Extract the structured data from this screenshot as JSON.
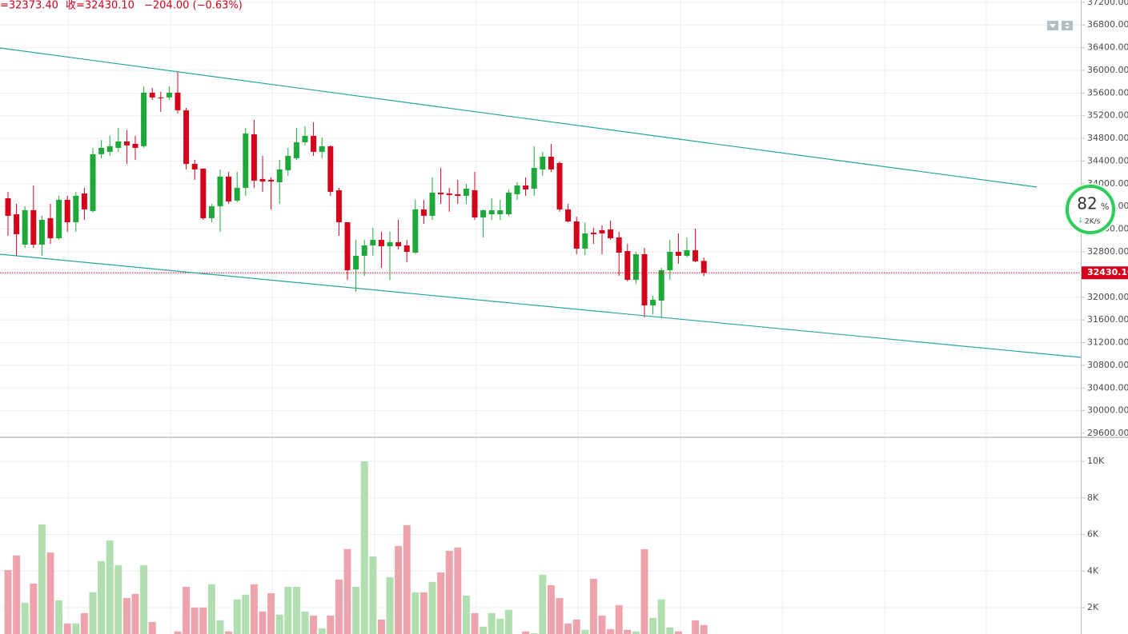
{
  "chart_data": {
    "type": "candlestick",
    "header": [
      "=32373.40",
      "收=32430.10",
      "−204.00 (−0.63%)"
    ],
    "open": [
      33745,
      33463,
      32927,
      33534,
      32927,
      33393,
      33040,
      33717,
      33322,
      33830,
      33520,
      34521,
      34563,
      34633,
      34746,
      34704,
      34662,
      35606,
      35522,
      35522,
      35606,
      35296,
      34351,
      34267,
      33393,
      33604,
      34126,
      33703,
      33928,
      34873,
      34084,
      34070,
      34027,
      34239,
      34450,
      34732,
      34845,
      34563,
      34662,
      33886,
      33322,
      32490,
      32730,
      32913,
      33012,
      32899,
      32970,
      32913,
      32786,
      33548,
      33435,
      33844,
      33830,
      33815,
      33787,
      33886,
      33407,
      33463,
      33463,
      33463,
      33816,
      33971,
      33914,
      34253,
      34478,
      34366,
      33548,
      33336,
      32857,
      33139,
      33181,
      33195,
      33054,
      32814,
      32307,
      32758,
      31856,
      31940,
      32476,
      32800,
      32730,
      32829,
      32640
    ],
    "high": [
      33858,
      33646,
      33604,
      33971,
      33435,
      33646,
      33787,
      33787,
      33858,
      33928,
      34633,
      34774,
      34845,
      34986,
      34944,
      34845,
      35719,
      35691,
      35620,
      35719,
      35973,
      35338,
      34422,
      34267,
      33646,
      34253,
      34210,
      34210,
      34986,
      35127,
      34492,
      34112,
      34422,
      34633,
      34986,
      35014,
      35085,
      34817,
      34676,
      33928,
      33322,
      33012,
      33012,
      33223,
      33153,
      33153,
      33364,
      33012,
      33717,
      33717,
      34112,
      34281,
      33928,
      34069,
      33999,
      34210,
      33548,
      33745,
      33717,
      33900,
      34027,
      34112,
      34662,
      34563,
      34704,
      34394,
      33646,
      33420,
      33322,
      33223,
      33266,
      33350,
      33153,
      32941,
      32800,
      32871,
      32025,
      32518,
      33012,
      33125,
      33054,
      33209,
      32700
    ],
    "low": [
      33082,
      32730,
      32871,
      32871,
      32730,
      32941,
      33012,
      33153,
      33153,
      33364,
      33491,
      34450,
      34492,
      34563,
      34351,
      34422,
      34633,
      35479,
      35268,
      35479,
      35240,
      34253,
      34069,
      33364,
      33322,
      33153,
      33646,
      33675,
      33787,
      33928,
      33858,
      33548,
      33646,
      34140,
      34422,
      34676,
      34492,
      34450,
      33787,
      33082,
      32307,
      32095,
      32377,
      32730,
      32518,
      32307,
      32843,
      32617,
      32758,
      33294,
      33364,
      33646,
      33506,
      33646,
      33646,
      33364,
      33054,
      33364,
      33364,
      33435,
      33717,
      33787,
      33787,
      34140,
      34210,
      33506,
      33322,
      32758,
      32744,
      32941,
      32758,
      33012,
      32377,
      32279,
      32237,
      31644,
      31701,
      31630,
      32307,
      32589,
      32702,
      32617,
      32373.4
    ],
    "close": [
      33435,
      33111,
      33534,
      32927,
      33364,
      33040,
      33717,
      33322,
      33787,
      33548,
      34521,
      34633,
      34662,
      34746,
      34676,
      34633,
      35606,
      35522,
      35515,
      35606,
      35296,
      34351,
      34253,
      33393,
      33604,
      34126,
      33689,
      33928,
      34887,
      34055,
      34041,
      34040,
      34253,
      34492,
      34732,
      34845,
      34563,
      34662,
      33858,
      33322,
      32476,
      32730,
      32913,
      33012,
      32899,
      32970,
      32899,
      32800,
      33548,
      33435,
      33844,
      33815,
      33801,
      33787,
      33914,
      33407,
      33534,
      33534,
      33534,
      33844,
      33971,
      33900,
      34281,
      34478,
      34253,
      33548,
      33336,
      32857,
      33124,
      33111,
      33125,
      33040,
      32786,
      32307,
      32758,
      31856,
      31954,
      32476,
      32800,
      32730,
      32829,
      32634.1,
      32430.1
    ],
    "volume": [
      4060,
      4850,
      2270,
      3320,
      6550,
      5020,
      2400,
      1140,
      1140,
      1700,
      2840,
      4540,
      5680,
      4320,
      2530,
      2750,
      4320,
      1220,
      400,
      500,
      700,
      3140,
      2010,
      2010,
      3280,
      1310,
      700,
      2450,
      2710,
      3280,
      1790,
      2790,
      1620,
      3140,
      3140,
      1790,
      1570,
      870,
      1570,
      3540,
      5200,
      3140,
      10000,
      4800,
      1350,
      3670,
      5370,
      6510,
      2840,
      2840,
      3410,
      3930,
      5110,
      5280,
      2660,
      1700,
      960,
      1700,
      1400,
      1880,
      500,
      700,
      600,
      3800,
      3230,
      2530,
      1140,
      1350,
      790,
      3580,
      1570,
      830,
      2140,
      790,
      700,
      5200,
      1440,
      2450,
      920,
      700,
      500,
      1310,
      1050
    ],
    "up_color": "#1fa83a",
    "down_color": "#d3031c",
    "volume_up_color": "#b1deb0",
    "volume_down_color": "#eca3ab",
    "ylim": [
      29530,
      37240
    ],
    "yticks": [
      {
        "value": 29600,
        "label": "29600.00"
      },
      {
        "value": 30000,
        "label": "30000.00"
      },
      {
        "value": 30400,
        "label": "30400.00"
      },
      {
        "value": 30800,
        "label": "30800.00"
      },
      {
        "value": 31200,
        "label": "31200.00"
      },
      {
        "value": 31600,
        "label": "31600.00"
      },
      {
        "value": 32000,
        "label": "32000.00"
      },
      {
        "value": 32400,
        "label": "32400.00"
      },
      {
        "value": 32800,
        "label": "32800.00"
      },
      {
        "value": 33200,
        "label": "33200.00"
      },
      {
        "value": 33600,
        "label": "33600.00"
      },
      {
        "value": 34000,
        "label": "34000.00"
      },
      {
        "value": 34400,
        "label": "34400.00"
      },
      {
        "value": 34800,
        "label": "34800.00"
      },
      {
        "value": 35200,
        "label": "35200.00"
      },
      {
        "value": 35600,
        "label": "35600.00"
      },
      {
        "value": 36000,
        "label": "36000.00"
      },
      {
        "value": 36400,
        "label": "36400.00"
      },
      {
        "value": 36800,
        "label": "36800.00"
      },
      {
        "value": 37200,
        "label": "37200.00"
      }
    ],
    "y2lim": [
      560,
      11270
    ],
    "y2ticks": [
      {
        "value": 2000,
        "label": "2K"
      },
      {
        "value": 4000,
        "label": "4K"
      },
      {
        "value": 6000,
        "label": "6K"
      },
      {
        "value": 8000,
        "label": "8K"
      },
      {
        "value": 10000,
        "label": "10K"
      }
    ],
    "last_price": {
      "value": 32430.1,
      "label": "32430.10"
    },
    "grid": true,
    "overlay": {
      "percent": 82,
      "unit": "%",
      "speed": "2K/s"
    }
  }
}
